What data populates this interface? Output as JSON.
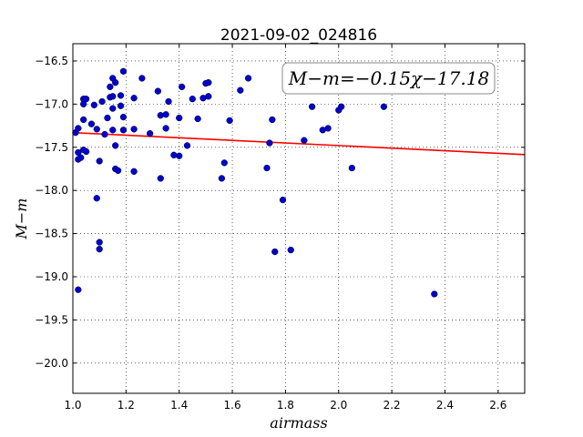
{
  "chart_data": {
    "type": "scatter",
    "title": "2021-09-02_024816",
    "xlabel": "airmass",
    "ylabel": "M−m",
    "xlim": [
      1.0,
      2.7
    ],
    "ylim": [
      -20.35,
      -16.3
    ],
    "x_ticks": [
      1.0,
      1.2,
      1.4,
      1.6,
      1.8,
      2.0,
      2.2,
      2.4,
      2.6
    ],
    "x_tick_labels": [
      "1.0",
      "1.2",
      "1.4",
      "1.6",
      "1.8",
      "2.0",
      "2.2",
      "2.4",
      "2.6"
    ],
    "y_ticks": [
      -16.5,
      -17.0,
      -17.5,
      -18.0,
      -18.5,
      -19.0,
      -19.5,
      -20.0
    ],
    "y_tick_labels": [
      "−16.5",
      "−17.0",
      "−17.5",
      "−18.0",
      "−18.5",
      "−19.0",
      "−19.5",
      "−20.0"
    ],
    "grid": true,
    "legend_placement": "top-right",
    "fit_label": "M−m=−0.15χ−17.18",
    "fit": {
      "slope": -0.15,
      "intercept": -17.18,
      "color": "#ff0000"
    },
    "point_color": "#0000cc",
    "points": [
      [
        1.01,
        -17.33
      ],
      [
        1.02,
        -17.28
      ],
      [
        1.02,
        -17.56
      ],
      [
        1.02,
        -17.64
      ],
      [
        1.03,
        -17.62
      ],
      [
        1.02,
        -19.15
      ],
      [
        1.04,
        -17.0
      ],
      [
        1.04,
        -16.94
      ],
      [
        1.05,
        -16.94
      ],
      [
        1.04,
        -17.18
      ],
      [
        1.04,
        -17.53
      ],
      [
        1.05,
        -17.55
      ],
      [
        1.07,
        -17.23
      ],
      [
        1.08,
        -17.01
      ],
      [
        1.09,
        -17.29
      ],
      [
        1.09,
        -18.09
      ],
      [
        1.1,
        -18.6
      ],
      [
        1.1,
        -18.68
      ],
      [
        1.1,
        -17.66
      ],
      [
        1.11,
        -16.97
      ],
      [
        1.12,
        -17.35
      ],
      [
        1.13,
        -17.16
      ],
      [
        1.14,
        -16.8
      ],
      [
        1.15,
        -16.7
      ],
      [
        1.14,
        -16.92
      ],
      [
        1.15,
        -16.91
      ],
      [
        1.15,
        -17.05
      ],
      [
        1.15,
        -17.3
      ],
      [
        1.16,
        -17.48
      ],
      [
        1.16,
        -16.75
      ],
      [
        1.16,
        -17.75
      ],
      [
        1.17,
        -17.77
      ],
      [
        1.18,
        -16.9
      ],
      [
        1.18,
        -17.02
      ],
      [
        1.19,
        -17.3
      ],
      [
        1.19,
        -17.15
      ],
      [
        1.19,
        -16.62
      ],
      [
        1.23,
        -16.93
      ],
      [
        1.23,
        -17.29
      ],
      [
        1.23,
        -17.78
      ],
      [
        1.26,
        -16.7
      ],
      [
        1.29,
        -17.34
      ],
      [
        1.32,
        -16.85
      ],
      [
        1.33,
        -17.13
      ],
      [
        1.33,
        -17.86
      ],
      [
        1.35,
        -17.12
      ],
      [
        1.35,
        -17.28
      ],
      [
        1.36,
        -16.97
      ],
      [
        1.38,
        -17.59
      ],
      [
        1.4,
        -17.6
      ],
      [
        1.4,
        -17.16
      ],
      [
        1.41,
        -16.8
      ],
      [
        1.43,
        -17.48
      ],
      [
        1.45,
        -16.94
      ],
      [
        1.47,
        -17.17
      ],
      [
        1.49,
        -16.93
      ],
      [
        1.5,
        -16.76
      ],
      [
        1.51,
        -16.91
      ],
      [
        1.51,
        -16.75
      ],
      [
        1.56,
        -17.86
      ],
      [
        1.57,
        -17.68
      ],
      [
        1.59,
        -17.19
      ],
      [
        1.63,
        -16.84
      ],
      [
        1.66,
        -16.7
      ],
      [
        1.73,
        -17.74
      ],
      [
        1.74,
        -17.45
      ],
      [
        1.75,
        -17.18
      ],
      [
        1.76,
        -18.71
      ],
      [
        1.79,
        -18.11
      ],
      [
        1.82,
        -18.69
      ],
      [
        1.87,
        -17.42
      ],
      [
        1.9,
        -17.03
      ],
      [
        1.94,
        -17.3
      ],
      [
        1.96,
        -17.28
      ],
      [
        2.0,
        -17.07
      ],
      [
        2.01,
        -17.03
      ],
      [
        2.05,
        -17.74
      ],
      [
        2.17,
        -17.03
      ],
      [
        2.36,
        -19.2
      ]
    ]
  }
}
